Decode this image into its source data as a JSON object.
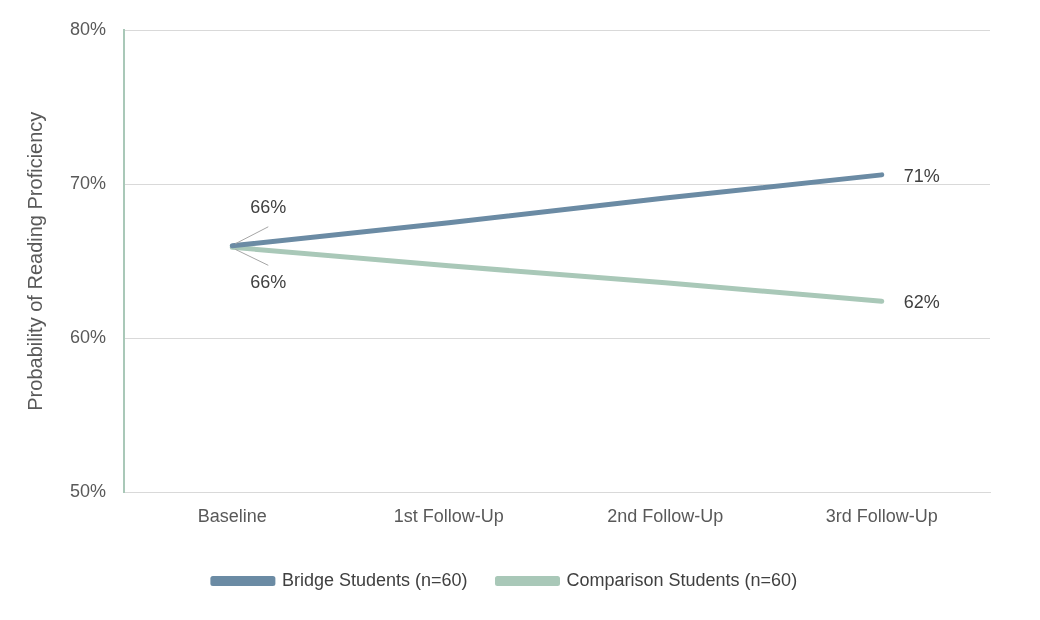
{
  "chart_data": {
    "type": "line",
    "ylabel": "Probability of Reading Proficiency",
    "categories": [
      "Baseline",
      "1st Follow-Up",
      "2nd Follow-Up",
      "3rd Follow-Up"
    ],
    "series": [
      {
        "name": "Bridge Students (n=60)",
        "color": "#6b8ba4",
        "values": [
          66.0,
          67.5,
          69.1,
          70.6
        ],
        "value_labels": [
          "66%",
          null,
          null,
          "71%"
        ]
      },
      {
        "name": "Comparison Students (n=60)",
        "color": "#a9c8b8",
        "values": [
          65.9,
          64.7,
          63.6,
          62.4
        ],
        "value_labels": [
          "66%",
          null,
          null,
          "62%"
        ]
      }
    ],
    "ylim": [
      50,
      80
    ],
    "yticks": [
      {
        "value": 50,
        "label": "50%"
      },
      {
        "value": 60,
        "label": "60%"
      },
      {
        "value": 70,
        "label": "70%"
      },
      {
        "value": 80,
        "label": "80%"
      }
    ],
    "grid": "y",
    "legend": "bottom",
    "marker": "none",
    "line_style": "solid"
  }
}
